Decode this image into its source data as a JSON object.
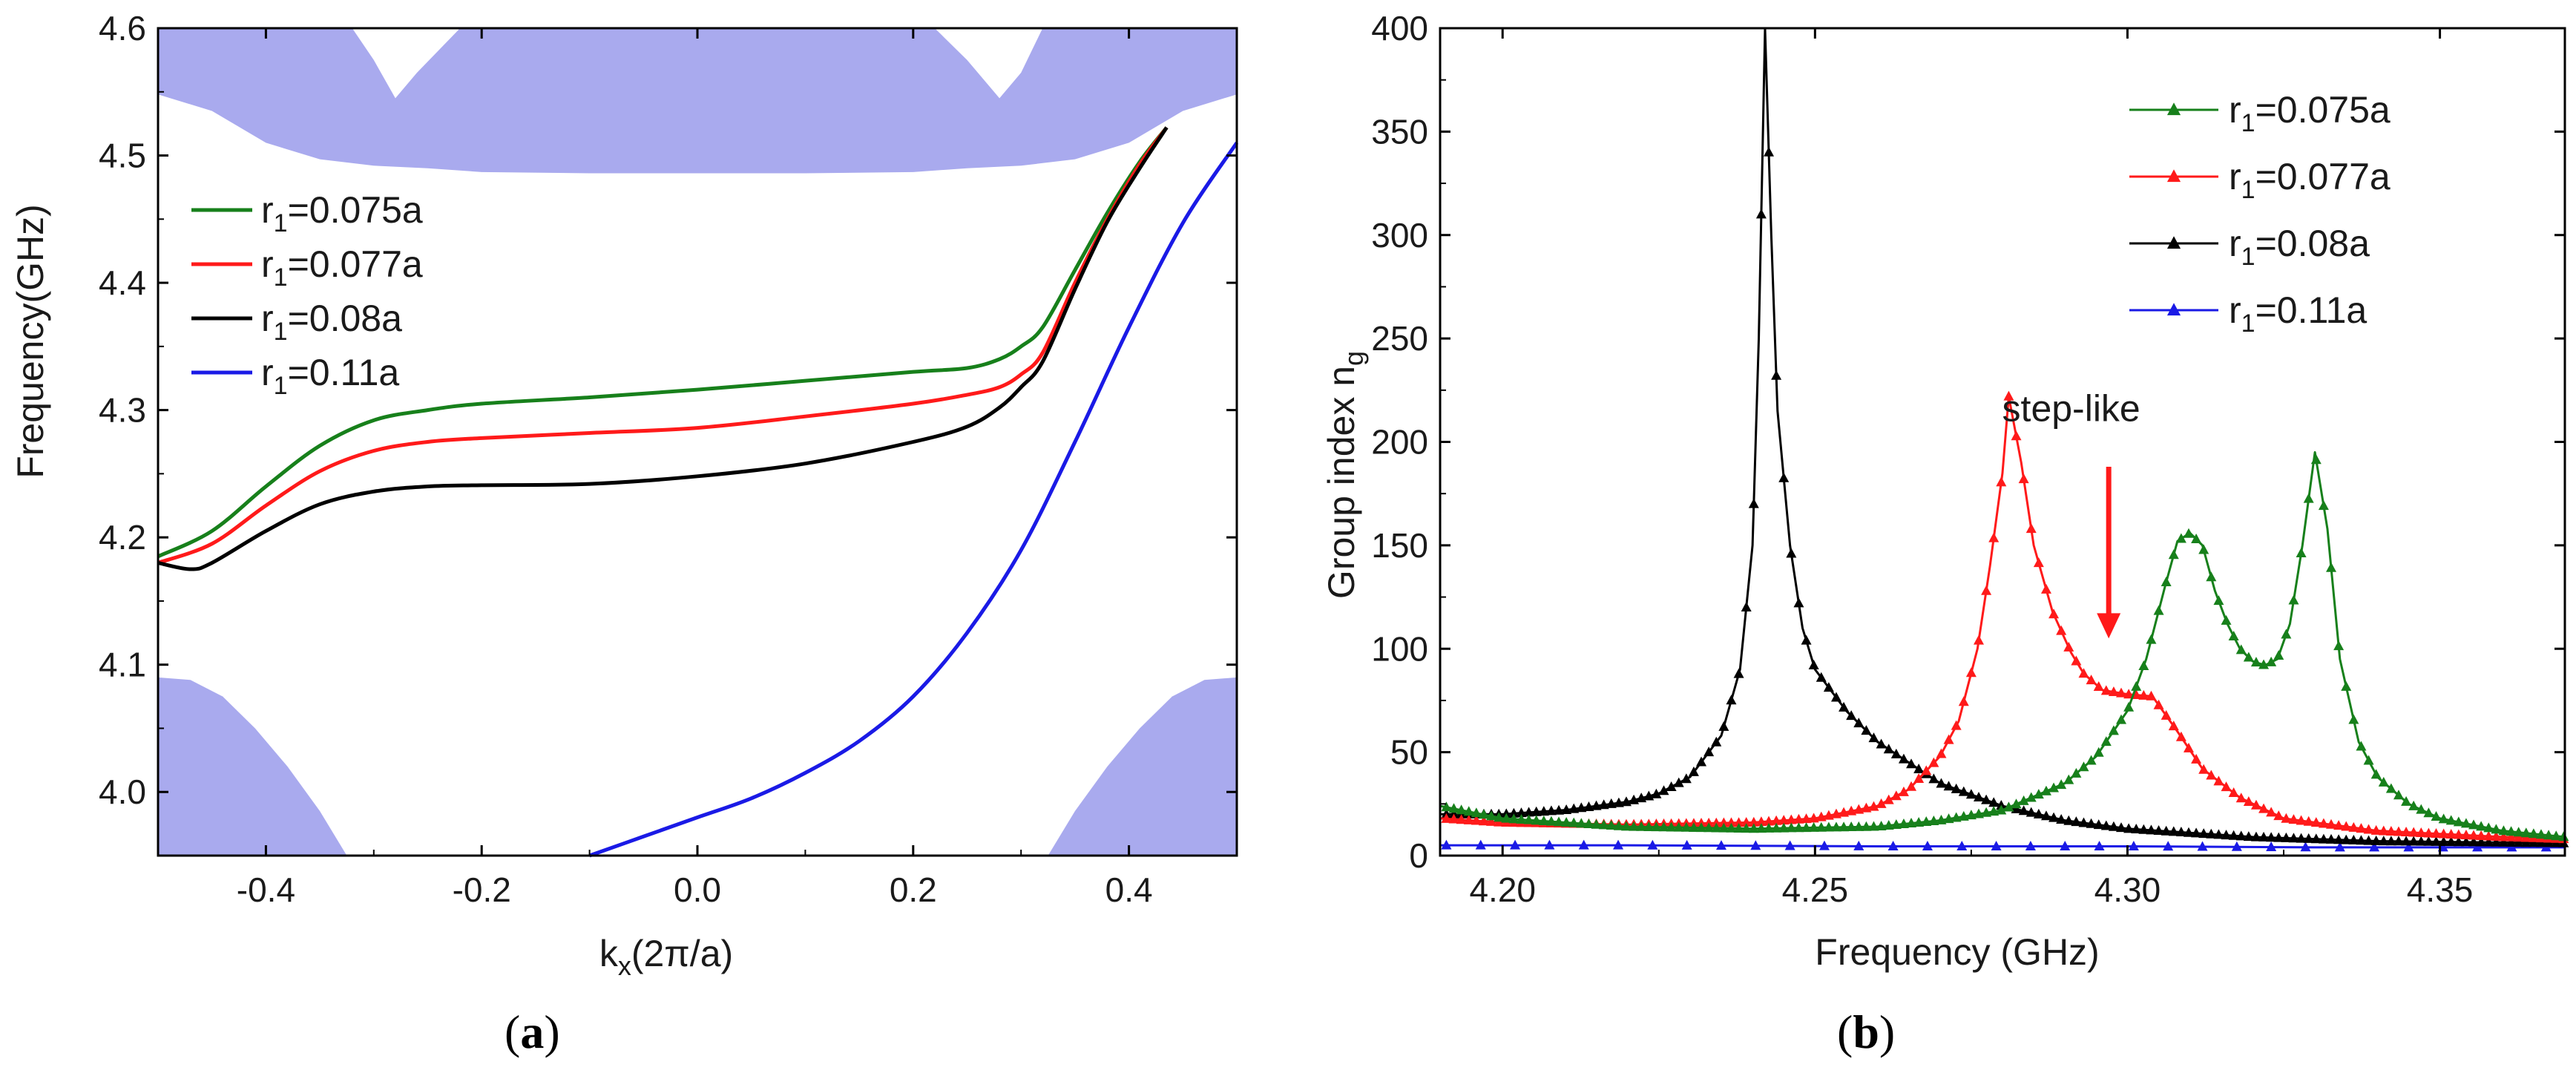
{
  "colors": {
    "green": "#17801b",
    "red": "#ff1a1a",
    "black": "#000000",
    "blue": "#1a1ae6",
    "band": "#a9aaee"
  },
  "chart_data": [
    {
      "id": "a",
      "type": "line",
      "caption_open": "(",
      "caption_letter": "a",
      "caption_close": ")",
      "xlabel_main": "k",
      "xlabel_sub": "x",
      "xlabel_rest": "(2π/a)",
      "ylabel": "Frequency(GHz)",
      "xlim": [
        -0.5,
        0.5
      ],
      "ylim": [
        3.95,
        4.6
      ],
      "xticks": [
        -0.4,
        -0.2,
        0.0,
        0.2,
        0.4
      ],
      "xtick_labels": [
        "-0.4",
        "-0.2",
        "0.0",
        "0.2",
        "0.4"
      ],
      "yticks": [
        4.0,
        4.1,
        4.2,
        4.3,
        4.4,
        4.5,
        4.6
      ],
      "ytick_labels": [
        "4.0",
        "4.1",
        "4.2",
        "4.3",
        "4.4",
        "4.5",
        "4.6"
      ],
      "legend_position": "center-left",
      "bands": [
        {
          "name": "upper-band",
          "lower": [
            [
              -0.5,
              4.548
            ],
            [
              -0.45,
              4.535
            ],
            [
              -0.4,
              4.51
            ],
            [
              -0.35,
              4.497
            ],
            [
              -0.3,
              4.492
            ],
            [
              -0.25,
              4.49
            ],
            [
              -0.2,
              4.487
            ],
            [
              -0.1,
              4.486
            ],
            [
              0.0,
              4.486
            ],
            [
              0.1,
              4.486
            ],
            [
              0.2,
              4.487
            ],
            [
              0.25,
              4.49
            ],
            [
              0.3,
              4.492
            ],
            [
              0.35,
              4.497
            ],
            [
              0.4,
              4.51
            ],
            [
              0.45,
              4.535
            ],
            [
              0.5,
              4.548
            ]
          ],
          "upper": [
            [
              -0.5,
              4.6
            ],
            [
              -0.32,
              4.6
            ],
            [
              -0.3,
              4.575
            ],
            [
              -0.28,
              4.545
            ],
            [
              -0.26,
              4.565
            ],
            [
              -0.22,
              4.6
            ],
            [
              0.22,
              4.6
            ],
            [
              0.25,
              4.575
            ],
            [
              0.28,
              4.545
            ],
            [
              0.3,
              4.565
            ],
            [
              0.32,
              4.6
            ],
            [
              0.5,
              4.6
            ]
          ]
        },
        {
          "name": "lower-left-band",
          "lower": [
            [
              -0.5,
              3.95
            ],
            [
              -0.325,
              3.95
            ]
          ],
          "upper": [
            [
              -0.5,
              4.09
            ],
            [
              -0.47,
              4.088
            ],
            [
              -0.44,
              4.075
            ],
            [
              -0.41,
              4.05
            ],
            [
              -0.38,
              4.02
            ],
            [
              -0.35,
              3.985
            ],
            [
              -0.325,
              3.95
            ]
          ]
        },
        {
          "name": "lower-right-band",
          "lower": [
            [
              0.325,
              3.95
            ],
            [
              0.5,
              3.95
            ]
          ],
          "upper": [
            [
              0.325,
              3.95
            ],
            [
              0.35,
              3.985
            ],
            [
              0.38,
              4.02
            ],
            [
              0.41,
              4.05
            ],
            [
              0.44,
              4.075
            ],
            [
              0.47,
              4.088
            ],
            [
              0.5,
              4.09
            ]
          ]
        }
      ],
      "series": [
        {
          "name": "r1=0.075a",
          "label_main": "r",
          "label_sub": "1",
          "label_rest": "=0.075a",
          "color": "#17801b",
          "points": [
            [
              -0.5,
              4.185
            ],
            [
              -0.45,
              4.205
            ],
            [
              -0.4,
              4.24
            ],
            [
              -0.35,
              4.272
            ],
            [
              -0.3,
              4.292
            ],
            [
              -0.25,
              4.3
            ],
            [
              -0.2,
              4.305
            ],
            [
              -0.1,
              4.31
            ],
            [
              0.0,
              4.316
            ],
            [
              0.1,
              4.323
            ],
            [
              0.2,
              4.33
            ],
            [
              0.25,
              4.333
            ],
            [
              0.28,
              4.34
            ],
            [
              0.3,
              4.35
            ],
            [
              0.32,
              4.365
            ],
            [
              0.35,
              4.41
            ],
            [
              0.38,
              4.455
            ],
            [
              0.41,
              4.495
            ],
            [
              0.435,
              4.522
            ]
          ]
        },
        {
          "name": "r1=0.077a",
          "label_main": "r",
          "label_sub": "1",
          "label_rest": "=0.077a",
          "color": "#ff1a1a",
          "points": [
            [
              -0.5,
              4.18
            ],
            [
              -0.45,
              4.195
            ],
            [
              -0.4,
              4.225
            ],
            [
              -0.35,
              4.252
            ],
            [
              -0.3,
              4.268
            ],
            [
              -0.25,
              4.275
            ],
            [
              -0.2,
              4.278
            ],
            [
              -0.1,
              4.282
            ],
            [
              0.0,
              4.286
            ],
            [
              0.1,
              4.295
            ],
            [
              0.2,
              4.305
            ],
            [
              0.25,
              4.312
            ],
            [
              0.28,
              4.318
            ],
            [
              0.3,
              4.328
            ],
            [
              0.32,
              4.345
            ],
            [
              0.35,
              4.4
            ],
            [
              0.38,
              4.45
            ],
            [
              0.41,
              4.493
            ],
            [
              0.435,
              4.522
            ]
          ]
        },
        {
          "name": "r1=0.08a",
          "label_main": "r",
          "label_sub": "1",
          "label_rest": "=0.08a",
          "color": "#000000",
          "points": [
            [
              -0.5,
              4.18
            ],
            [
              -0.47,
              4.175
            ],
            [
              -0.45,
              4.18
            ],
            [
              -0.4,
              4.205
            ],
            [
              -0.35,
              4.226
            ],
            [
              -0.3,
              4.236
            ],
            [
              -0.25,
              4.24
            ],
            [
              -0.2,
              4.241
            ],
            [
              -0.1,
              4.242
            ],
            [
              0.0,
              4.248
            ],
            [
              0.1,
              4.258
            ],
            [
              0.2,
              4.275
            ],
            [
              0.25,
              4.287
            ],
            [
              0.28,
              4.302
            ],
            [
              0.3,
              4.318
            ],
            [
              0.32,
              4.338
            ],
            [
              0.35,
              4.395
            ],
            [
              0.38,
              4.448
            ],
            [
              0.41,
              4.49
            ],
            [
              0.435,
              4.522
            ]
          ]
        },
        {
          "name": "r1=0.11a",
          "label_main": "r",
          "label_sub": "1",
          "label_rest": "=0.11a",
          "color": "#1a1ae6",
          "points": [
            [
              -0.1,
              3.95
            ],
            [
              -0.05,
              3.965
            ],
            [
              0.0,
              3.98
            ],
            [
              0.05,
              3.995
            ],
            [
              0.1,
              4.015
            ],
            [
              0.15,
              4.04
            ],
            [
              0.2,
              4.075
            ],
            [
              0.25,
              4.125
            ],
            [
              0.3,
              4.19
            ],
            [
              0.35,
              4.275
            ],
            [
              0.4,
              4.365
            ],
            [
              0.45,
              4.447
            ],
            [
              0.5,
              4.51
            ]
          ]
        }
      ]
    },
    {
      "id": "b",
      "type": "line",
      "caption_open": "(",
      "caption_letter": "b",
      "caption_close": ")",
      "xlabel": "Frequency (GHz)",
      "ylabel_main": "Group index n",
      "ylabel_sub": "g",
      "xlim": [
        4.19,
        4.37
      ],
      "ylim": [
        0,
        400
      ],
      "xticks": [
        4.2,
        4.25,
        4.3,
        4.35
      ],
      "xtick_labels": [
        "4.20",
        "4.25",
        "4.30",
        "4.35"
      ],
      "yticks": [
        0,
        50,
        100,
        150,
        200,
        250,
        300,
        350,
        400
      ],
      "ytick_labels": [
        "0",
        "50",
        "100",
        "150",
        "200",
        "250",
        "300",
        "350",
        "400"
      ],
      "legend_position": "top-right",
      "annotation": {
        "text": "step-like",
        "arrow_x": 4.297,
        "arrow_from_y": 188,
        "arrow_to_y": 105,
        "text_x": 4.291,
        "text_y": 210
      },
      "series": [
        {
          "name": "r1=0.075a",
          "label_main": "r",
          "label_sub": "1",
          "label_rest": "=0.075a",
          "color": "#17801b",
          "points": [
            [
              4.19,
              24
            ],
            [
              4.2,
              18
            ],
            [
              4.22,
              14
            ],
            [
              4.24,
              13
            ],
            [
              4.26,
              14
            ],
            [
              4.27,
              17
            ],
            [
              4.28,
              22
            ],
            [
              4.29,
              35
            ],
            [
              4.295,
              48
            ],
            [
              4.3,
              70
            ],
            [
              4.303,
              95
            ],
            [
              4.306,
              130
            ],
            [
              4.308,
              152
            ],
            [
              4.31,
              156
            ],
            [
              4.312,
              150
            ],
            [
              4.314,
              128
            ],
            [
              4.316,
              112
            ],
            [
              4.318,
              100
            ],
            [
              4.32,
              94
            ],
            [
              4.322,
              92
            ],
            [
              4.324,
              95
            ],
            [
              4.326,
              112
            ],
            [
              4.328,
              150
            ],
            [
              4.33,
              195
            ],
            [
              4.332,
              158
            ],
            [
              4.334,
              95
            ],
            [
              4.337,
              55
            ],
            [
              4.34,
              38
            ],
            [
              4.345,
              25
            ],
            [
              4.35,
              18
            ],
            [
              4.36,
              12
            ],
            [
              4.37,
              9
            ]
          ]
        },
        {
          "name": "r1=0.077a",
          "label_main": "r",
          "label_sub": "1",
          "label_rest": "=0.077a",
          "color": "#ff1a1a",
          "points": [
            [
              4.19,
              18
            ],
            [
              4.2,
              16
            ],
            [
              4.22,
              15
            ],
            [
              4.24,
              16
            ],
            [
              4.25,
              18
            ],
            [
              4.26,
              24
            ],
            [
              4.265,
              32
            ],
            [
              4.27,
              48
            ],
            [
              4.273,
              65
            ],
            [
              4.276,
              100
            ],
            [
              4.278,
              140
            ],
            [
              4.28,
              185
            ],
            [
              4.281,
              222
            ],
            [
              4.283,
              190
            ],
            [
              4.285,
              150
            ],
            [
              4.288,
              118
            ],
            [
              4.291,
              98
            ],
            [
              4.293,
              88
            ],
            [
              4.296,
              80
            ],
            [
              4.3,
              78
            ],
            [
              4.304,
              77
            ],
            [
              4.308,
              60
            ],
            [
              4.312,
              42
            ],
            [
              4.318,
              28
            ],
            [
              4.325,
              18
            ],
            [
              4.34,
              12
            ],
            [
              4.36,
              9
            ],
            [
              4.37,
              8
            ]
          ]
        },
        {
          "name": "r1=0.08a",
          "label_main": "r",
          "label_sub": "1",
          "label_rest": "=0.08a",
          "color": "#000000",
          "points": [
            [
              4.19,
              20
            ],
            [
              4.2,
              20
            ],
            [
              4.21,
              22
            ],
            [
              4.22,
              26
            ],
            [
              4.225,
              30
            ],
            [
              4.23,
              38
            ],
            [
              4.235,
              58
            ],
            [
              4.238,
              90
            ],
            [
              4.24,
              150
            ],
            [
              4.241,
              250
            ],
            [
              4.242,
              400
            ],
            [
              4.243,
              300
            ],
            [
              4.244,
              215
            ],
            [
              4.246,
              150
            ],
            [
              4.248,
              110
            ],
            [
              4.25,
              90
            ],
            [
              4.255,
              70
            ],
            [
              4.26,
              55
            ],
            [
              4.265,
              45
            ],
            [
              4.27,
              35
            ],
            [
              4.28,
              24
            ],
            [
              4.29,
              17
            ],
            [
              4.3,
              13
            ],
            [
              4.32,
              9
            ],
            [
              4.34,
              7
            ],
            [
              4.37,
              6
            ]
          ]
        },
        {
          "name": "r1=0.11a",
          "label_main": "r",
          "label_sub": "1",
          "label_rest": "=0.11a",
          "color": "#1a1ae6",
          "points": [
            [
              4.19,
              5
            ],
            [
              4.22,
              5
            ],
            [
              4.26,
              4.5
            ],
            [
              4.3,
              4.5
            ],
            [
              4.33,
              4
            ],
            [
              4.37,
              4
            ]
          ]
        }
      ]
    }
  ]
}
